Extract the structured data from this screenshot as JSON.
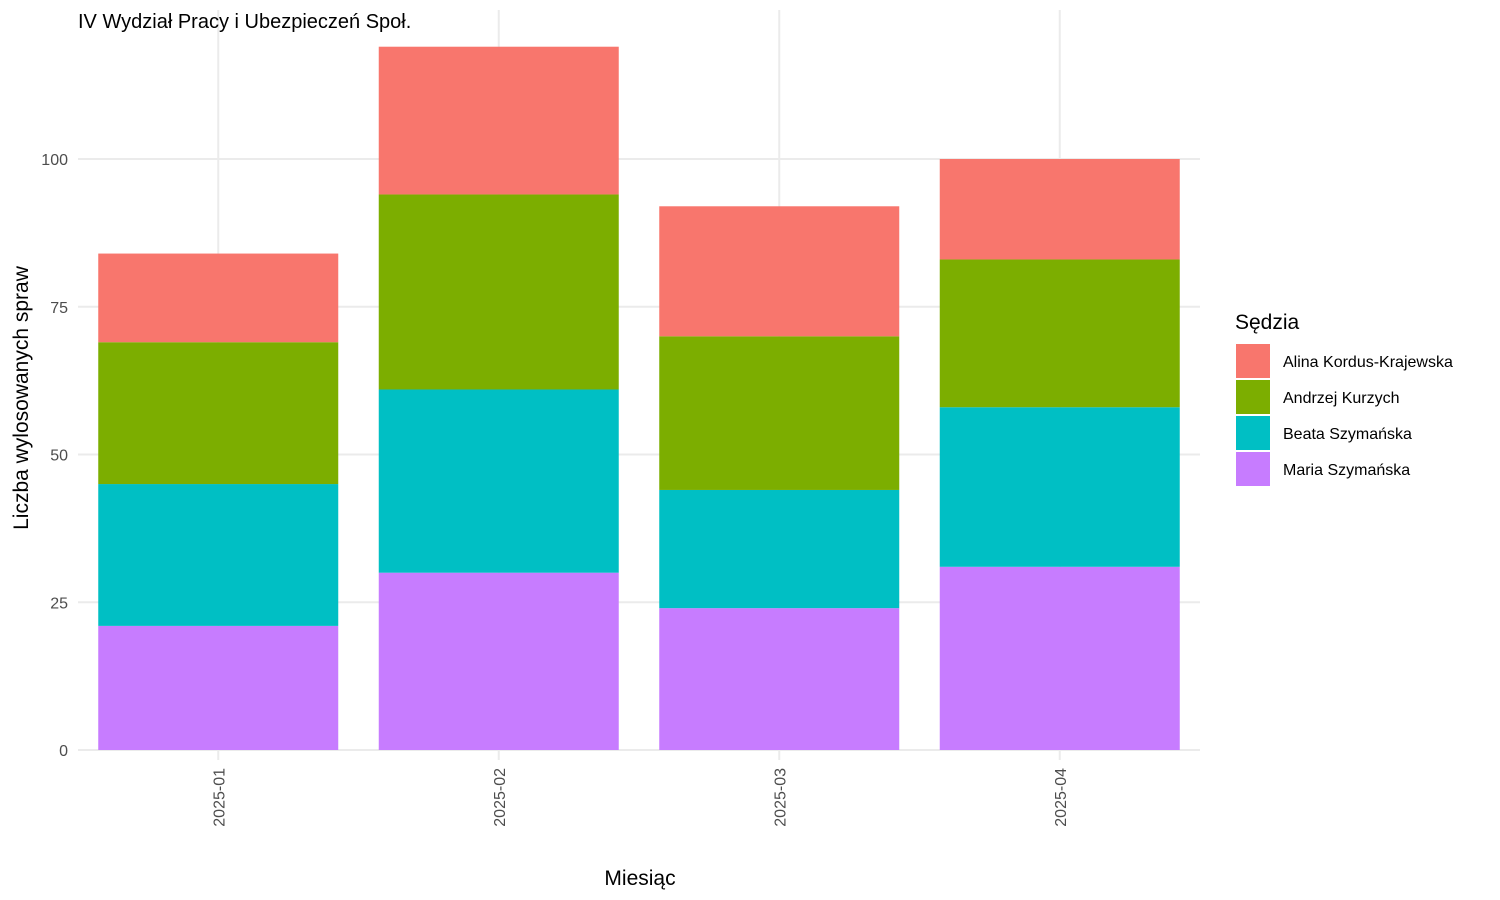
{
  "chart_data": {
    "type": "bar",
    "stacked": true,
    "title": "IV Wydział Pracy i Ubezpieczeń Społ.",
    "xlabel": "Miesiąc",
    "ylabel": "Liczba wylosowanych spraw",
    "categories": [
      "2025-01",
      "2025-02",
      "2025-03",
      "2025-04"
    ],
    "ylim": [
      0,
      119
    ],
    "yticks": [
      0,
      25,
      50,
      75,
      100
    ],
    "grid": true,
    "legend": {
      "title": "Sędzia",
      "placement": "right"
    },
    "series": [
      {
        "name": "Maria Szymańska",
        "color": "#C77CFF",
        "values": [
          21,
          30,
          24,
          31
        ]
      },
      {
        "name": "Beata Szymańska",
        "color": "#00BFC4",
        "values": [
          24,
          31,
          20,
          27
        ]
      },
      {
        "name": "Andrzej Kurzych",
        "color": "#7CAE00",
        "values": [
          24,
          33,
          26,
          25
        ]
      },
      {
        "name": "Alina Kordus-Krajewska",
        "color": "#F8766D",
        "values": [
          15,
          25,
          22,
          17
        ]
      }
    ]
  }
}
